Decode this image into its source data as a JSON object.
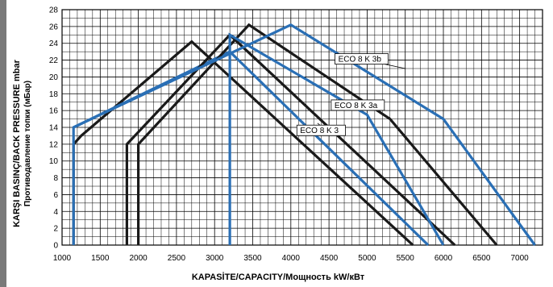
{
  "chart_data": {
    "type": "line",
    "xlabel": "KAPASİTE/CAPACITY/Мощность  kW/кВт",
    "ylabel_line1": "KARŞI BASINÇ/BACK PRESSURE mbar",
    "ylabel_line2": "Противодавление топки (мБар)",
    "xlim": [
      1000,
      7300
    ],
    "ylim": [
      0,
      28
    ],
    "x_ticks": [
      1000,
      1500,
      2000,
      2500,
      3000,
      3500,
      4000,
      4500,
      5000,
      5500,
      6000,
      6500,
      7000
    ],
    "y_ticks": [
      0,
      2,
      4,
      6,
      8,
      10,
      12,
      14,
      16,
      18,
      20,
      22,
      24,
      26,
      28
    ],
    "grid": true,
    "colors": {
      "black": "#1a1a1a",
      "blue": "#2a6fb5"
    },
    "series": [
      {
        "color": "black",
        "points": [
          [
            1150,
            0
          ],
          [
            1150,
            12
          ],
          [
            1250,
            13
          ],
          [
            2700,
            24.2
          ],
          [
            5600,
            0
          ]
        ]
      },
      {
        "color": "blue",
        "points": [
          [
            1150,
            0
          ],
          [
            1150,
            14
          ],
          [
            3200,
            23
          ],
          [
            5800,
            0
          ]
        ]
      },
      {
        "color": "black",
        "points": [
          [
            1850,
            0
          ],
          [
            1850,
            12
          ],
          [
            3200,
            25
          ],
          [
            6150,
            0
          ]
        ]
      },
      {
        "color": "black",
        "points": [
          [
            2000,
            0
          ],
          [
            2000,
            12
          ],
          [
            3450,
            26.2
          ],
          [
            5300,
            15
          ],
          [
            6700,
            0
          ]
        ]
      },
      {
        "color": "blue",
        "points": [
          [
            3200,
            0
          ],
          [
            3200,
            25
          ],
          [
            5000,
            15.5
          ],
          [
            6000,
            0
          ]
        ]
      },
      {
        "color": "blue",
        "points": [
          [
            1150,
            14
          ],
          [
            4000,
            26.2
          ],
          [
            6000,
            15
          ],
          [
            7200,
            0
          ]
        ]
      }
    ],
    "annotations": [
      {
        "text": "ECO 8 K 3b",
        "x": 4600,
        "y": 22,
        "target": [
          5500,
          21
        ]
      },
      {
        "text": "ECO 8 K 3a",
        "x": 4550,
        "y": 16.5,
        "target": [
          5000,
          16
        ]
      },
      {
        "text": "ECO 8 K 3",
        "x": 4100,
        "y": 13.5,
        "target": [
          4350,
          14.5
        ]
      }
    ]
  }
}
